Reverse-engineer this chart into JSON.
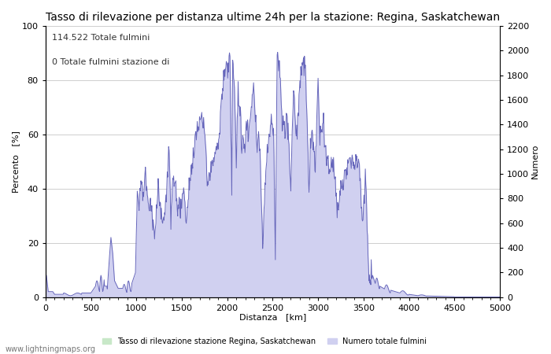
{
  "title": "Tasso di rilevazione per distanza ultime 24h per la stazione: Regina, Saskatchewan",
  "xlabel": "Distanza   [km]",
  "ylabel_left": "Percento   [%]",
  "ylabel_right": "Numero",
  "annotation_line1": "114.522 Totale fulmini",
  "annotation_line2": "0 Totale fulmini stazione di",
  "xlim": [
    0,
    5000
  ],
  "ylim_left": [
    0,
    100
  ],
  "ylim_right": [
    0,
    2200
  ],
  "xticks": [
    0,
    500,
    1000,
    1500,
    2000,
    2500,
    3000,
    3500,
    4000,
    4500,
    5000
  ],
  "yticks_left": [
    0,
    20,
    40,
    60,
    80,
    100
  ],
  "yticks_right": [
    0,
    200,
    400,
    600,
    800,
    1000,
    1200,
    1400,
    1600,
    1800,
    2000,
    2200
  ],
  "legend_label_green": "Tasso di rilevazione stazione Regina, Saskatchewan",
  "legend_label_blue": "Numero totale fulmini",
  "watermark": "www.lightningmaps.org",
  "fill_green_color": "#c8e8c8",
  "fill_blue_color": "#d0d0f0",
  "line_color": "#6666bb",
  "background_color": "#ffffff",
  "grid_color": "#bbbbbb",
  "title_fontsize": 10,
  "axis_fontsize": 8,
  "tick_fontsize": 8,
  "annotation_fontsize": 8,
  "watermark_fontsize": 7
}
